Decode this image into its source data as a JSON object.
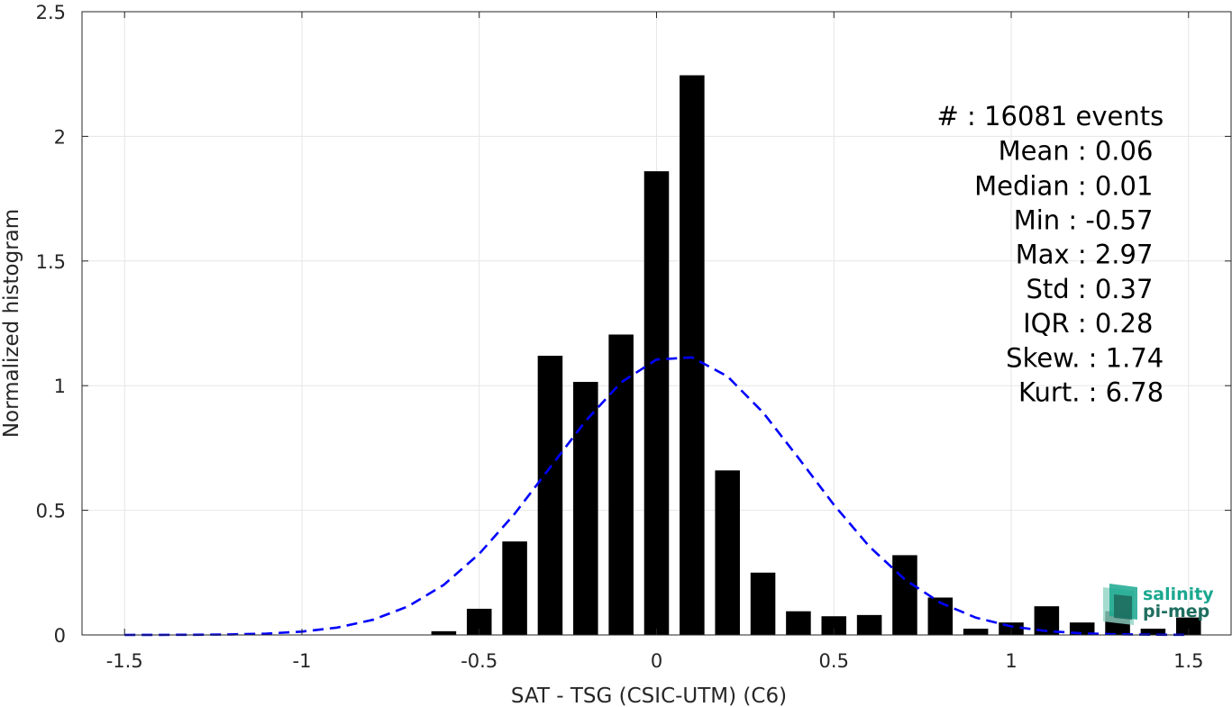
{
  "chart_data": {
    "type": "bar",
    "xlabel": "SAT - TSG (CSIC-UTM) (C6)",
    "ylabel": "Normalized histogram",
    "xlim": [
      -1.62,
      1.62
    ],
    "ylim": [
      0,
      2.5
    ],
    "xticks": [
      -1.5,
      -1,
      -0.5,
      0,
      0.5,
      1,
      1.5
    ],
    "xtick_labels": [
      "-1.5",
      "-1",
      "-0.5",
      "0",
      "0.5",
      "1",
      "1.5"
    ],
    "yticks": [
      0,
      0.5,
      1,
      1.5,
      2,
      2.5
    ],
    "ytick_labels": [
      "0",
      "0.5",
      "1",
      "1.5",
      "2",
      "2.5"
    ],
    "grid": true,
    "bar_width": 0.07,
    "bars": {
      "x": [
        -0.6,
        -0.5,
        -0.4,
        -0.3,
        -0.2,
        -0.1,
        0,
        0.1,
        0.2,
        0.3,
        0.4,
        0.5,
        0.6,
        0.7,
        0.8,
        0.9,
        1.0,
        1.1,
        1.2,
        1.3,
        1.4,
        1.5
      ],
      "values": [
        0.015,
        0.105,
        0.375,
        1.12,
        1.015,
        1.205,
        1.86,
        2.245,
        0.66,
        0.25,
        0.095,
        0.075,
        0.08,
        0.32,
        0.15,
        0.025,
        0.05,
        0.115,
        0.05,
        0.095,
        0.025,
        0.07
      ],
      "color": "#000000"
    },
    "fit": {
      "style": "dashed",
      "color": "#0000ff",
      "mean": 0.06,
      "std": 0.356,
      "x_start": -1.5,
      "x_end": 1.5,
      "samples": 31
    },
    "stats": [
      {
        "label": "#  : 16081 events",
        "anchor": "end",
        "x": 1.43,
        "y": 2.045
      },
      {
        "label": "Mean : 0.06",
        "anchor": "end",
        "x": 1.4,
        "y": 1.905
      },
      {
        "label": "Median : 0.01",
        "anchor": "end",
        "x": 1.4,
        "y": 1.765
      },
      {
        "label": "Min : -0.57",
        "anchor": "end",
        "x": 1.4,
        "y": 1.628
      },
      {
        "label": "Max : 2.97",
        "anchor": "end",
        "x": 1.4,
        "y": 1.49
      },
      {
        "label": "Std : 0.37",
        "anchor": "end",
        "x": 1.4,
        "y": 1.352
      },
      {
        "label": "IQR : 0.28",
        "anchor": "end",
        "x": 1.4,
        "y": 1.214
      },
      {
        "label": "Skew. : 1.74",
        "anchor": "end",
        "x": 1.43,
        "y": 1.075
      },
      {
        "label": "Kurt. : 6.78",
        "anchor": "end",
        "x": 1.43,
        "y": 0.937
      }
    ]
  },
  "logo": {
    "line1": "salinity",
    "line2": "pi-mep",
    "color1": "#1aa88f",
    "color2": "#1e6e5f"
  }
}
